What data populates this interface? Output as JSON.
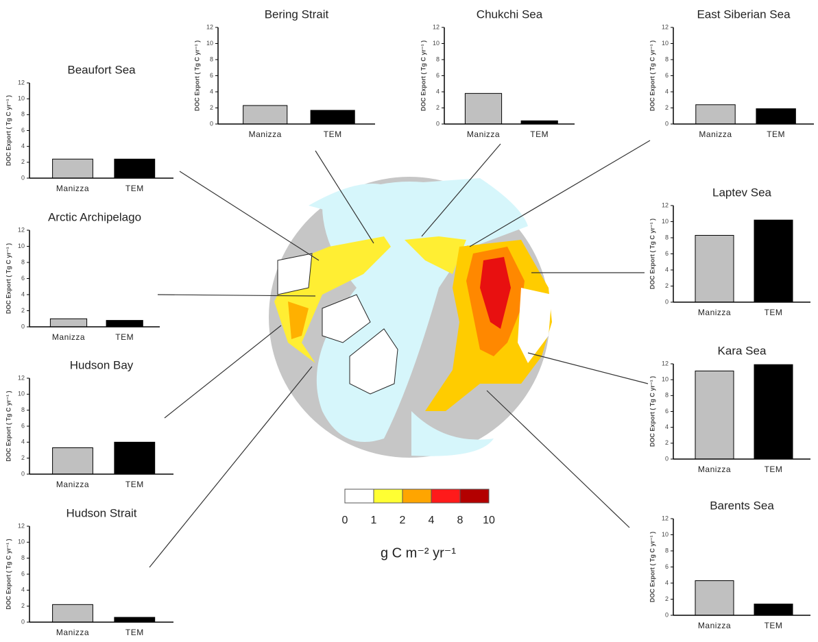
{
  "chart_data": [
    {
      "type": "bar",
      "title": "Beaufort Sea",
      "y_label": "DOC Export ( Tg C yr⁻¹ )",
      "categories": [
        "Manizza",
        "TEM"
      ],
      "values": [
        2.4,
        2.4
      ],
      "colors": [
        "#c0c0c0",
        "#000000"
      ],
      "ylim": [
        0,
        12
      ],
      "yticks": [
        0,
        2,
        4,
        6,
        8,
        10,
        12
      ]
    },
    {
      "type": "bar",
      "title": "Bering Strait",
      "y_label": "DOC Export ( Tg C yr⁻¹ )",
      "categories": [
        "Manizza",
        "TEM"
      ],
      "values": [
        2.3,
        1.7
      ],
      "colors": [
        "#c0c0c0",
        "#000000"
      ],
      "ylim": [
        0,
        12
      ],
      "yticks": [
        0,
        2,
        4,
        6,
        8,
        10,
        12
      ]
    },
    {
      "type": "bar",
      "title": "Chukchi Sea",
      "y_label": "DOC Export ( Tg C yr⁻¹ )",
      "categories": [
        "Manizza",
        "TEM"
      ],
      "values": [
        3.8,
        0.4
      ],
      "colors": [
        "#c0c0c0",
        "#000000"
      ],
      "ylim": [
        0,
        12
      ],
      "yticks": [
        0,
        2,
        4,
        6,
        8,
        10,
        12
      ]
    },
    {
      "type": "bar",
      "title": "East Siberian Sea",
      "y_label": "DOC Export ( Tg C yr⁻¹ )",
      "categories": [
        "Manizza",
        "TEM"
      ],
      "values": [
        2.4,
        1.9
      ],
      "colors": [
        "#c0c0c0",
        "#000000"
      ],
      "ylim": [
        0,
        12
      ],
      "yticks": [
        0,
        2,
        4,
        6,
        8,
        10,
        12
      ]
    },
    {
      "type": "bar",
      "title": "Arctic Archipelago",
      "y_label": "DOC Export ( Tg C yr⁻¹ )",
      "categories": [
        "Manizza",
        "TEM"
      ],
      "values": [
        1.0,
        0.8
      ],
      "colors": [
        "#c0c0c0",
        "#000000"
      ],
      "ylim": [
        0,
        12
      ],
      "yticks": [
        0,
        2,
        4,
        6,
        8,
        10,
        12
      ]
    },
    {
      "type": "bar",
      "title": "Laptev Sea",
      "y_label": "DOC Export ( Tg C yr⁻¹ )",
      "categories": [
        "Manizza",
        "TEM"
      ],
      "values": [
        8.3,
        10.2
      ],
      "colors": [
        "#c0c0c0",
        "#000000"
      ],
      "ylim": [
        0,
        12
      ],
      "yticks": [
        0,
        2,
        4,
        6,
        8,
        10,
        12
      ]
    },
    {
      "type": "bar",
      "title": "Hudson Bay",
      "y_label": "DOC Export ( Tg C yr⁻¹ )",
      "categories": [
        "Manizza",
        "TEM"
      ],
      "values": [
        3.3,
        4.0
      ],
      "colors": [
        "#c0c0c0",
        "#000000"
      ],
      "ylim": [
        0,
        12
      ],
      "yticks": [
        0,
        2,
        4,
        6,
        8,
        10,
        12
      ]
    },
    {
      "type": "bar",
      "title": "Kara Sea",
      "y_label": "DOC Export ( Tg C yr⁻¹ )",
      "categories": [
        "Manizza",
        "TEM"
      ],
      "values": [
        11.1,
        11.9
      ],
      "colors": [
        "#c0c0c0",
        "#000000"
      ],
      "ylim": [
        0,
        12
      ],
      "yticks": [
        0,
        2,
        4,
        6,
        8,
        10,
        12
      ]
    },
    {
      "type": "bar",
      "title": "Hudson Strait",
      "y_label": "DOC Export ( Tg C yr⁻¹ )",
      "categories": [
        "Manizza",
        "TEM"
      ],
      "values": [
        2.2,
        0.6
      ],
      "colors": [
        "#c0c0c0",
        "#000000"
      ],
      "ylim": [
        0,
        12
      ],
      "yticks": [
        0,
        2,
        4,
        6,
        8,
        10,
        12
      ]
    },
    {
      "type": "bar",
      "title": "Barents Sea",
      "y_label": "DOC Export ( Tg C yr⁻¹ )",
      "categories": [
        "Manizza",
        "TEM"
      ],
      "values": [
        4.3,
        1.4
      ],
      "colors": [
        "#c0c0c0",
        "#000000"
      ],
      "ylim": [
        0,
        12
      ],
      "yticks": [
        0,
        2,
        4,
        6,
        8,
        10,
        12
      ]
    }
  ],
  "colorbar": {
    "bins": [
      0,
      1,
      2,
      4,
      8,
      10
    ],
    "colors": [
      "#ffffff",
      "#ffff33",
      "#ffa500",
      "#ff1a1a",
      "#b30000"
    ],
    "label": "g C m⁻² yr⁻¹"
  }
}
